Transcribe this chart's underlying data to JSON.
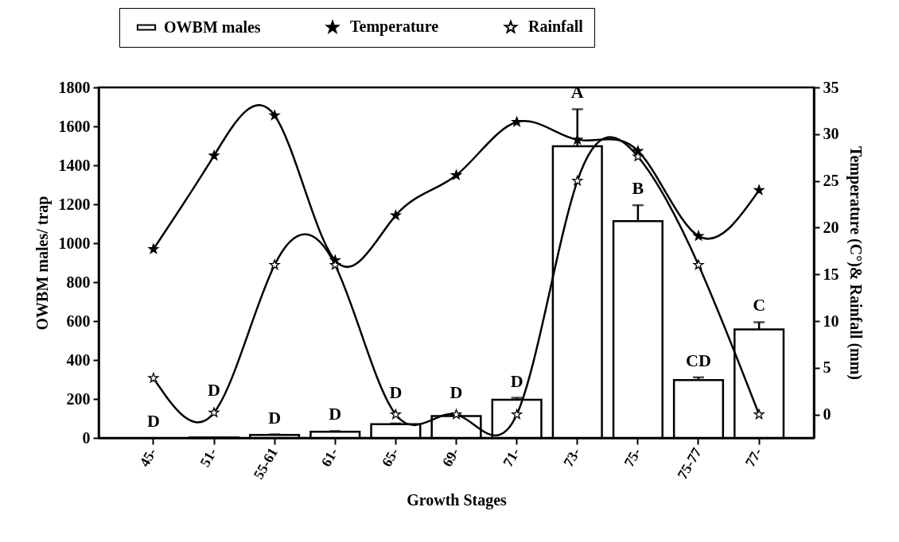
{
  "chart_data": {
    "xlabel": "Growth Stages",
    "ylabel": "OWBM males/ trap",
    "y2label": "Temperature (C°)& Rainfall (mm)",
    "categories": [
      "45-",
      "51-",
      "55-61",
      "61-",
      "65-",
      "69-",
      "71-",
      "73-",
      "75-",
      "75-77",
      "77-"
    ],
    "series": [
      {
        "name": "OWBM males",
        "color": "#ffffff",
        "values": [
          0,
          2,
          15,
          32,
          70,
          112,
          196,
          1498,
          1113,
          297,
          557
        ],
        "errors": [
          null,
          null,
          3,
          3,
          4,
          4,
          10,
          190,
          82,
          14,
          37
        ]
      },
      {
        "name": "Temperature",
        "type": "line",
        "axis": "y2",
        "color": "#000000",
        "values": [
          17.7,
          27.7,
          32.0,
          16.5,
          21.3,
          25.6,
          31.3,
          29.4,
          28.2,
          19.1,
          24.0
        ]
      },
      {
        "name": "Rainfall",
        "type": "line",
        "axis": "y2",
        "color": "#000000",
        "values": [
          3.9,
          0.2,
          16.0,
          16.0,
          0,
          0,
          0,
          25.0,
          27.6,
          16.0,
          0
        ]
      }
    ],
    "ylim": [
      0,
      1800
    ],
    "yticks": [
      0,
      200,
      400,
      600,
      800,
      1000,
      1200,
      1400,
      1600,
      1800
    ],
    "y2lim": [
      -2.5,
      35
    ],
    "y2ticks": [
      0,
      5,
      10,
      15,
      20,
      25,
      30,
      35
    ],
    "annotations": [
      {
        "text": "D",
        "x": "45-",
        "y": 0
      },
      {
        "text": "D",
        "x": "51-",
        "y": 2
      },
      {
        "text": "D",
        "x": "55-61",
        "y": 18
      },
      {
        "text": "D",
        "x": "61-",
        "y": 35
      },
      {
        "text": "D",
        "x": "65-",
        "y": 74
      },
      {
        "text": "D",
        "x": "69-",
        "y": 116
      },
      {
        "text": "D",
        "x": "71-",
        "y": 206
      },
      {
        "text": "A",
        "x": "73-",
        "y": 1688
      },
      {
        "text": "B",
        "x": "75-",
        "y": 1195
      },
      {
        "text": "CD",
        "x": "75-77",
        "y": 311
      },
      {
        "text": "C",
        "x": "77-",
        "y": 594
      }
    ],
    "type": "bar",
    "legend": "top",
    "marker": "star",
    "line_style": "solid"
  }
}
